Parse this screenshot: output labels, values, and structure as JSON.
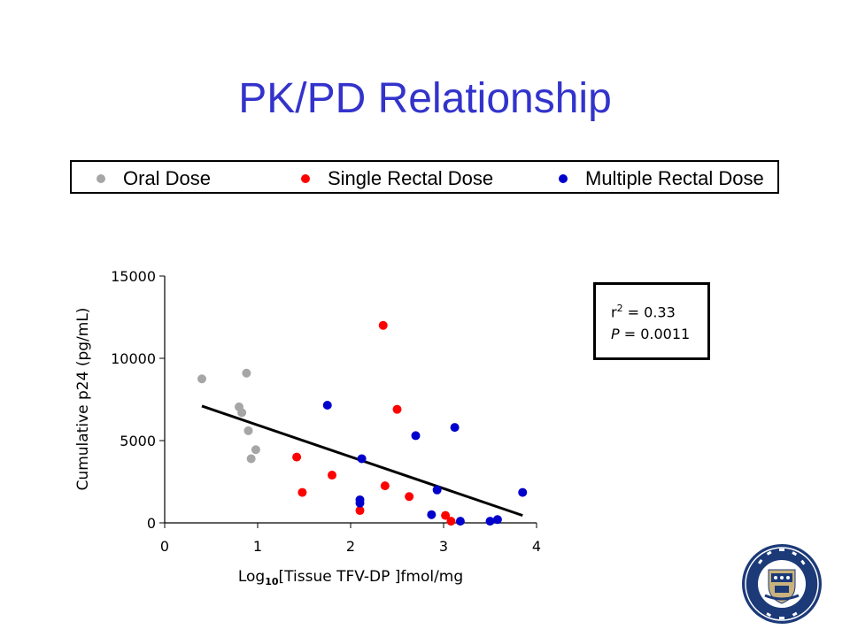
{
  "title": "PK/PD Relationship",
  "legend": {
    "items": [
      {
        "label": "Oral Dose",
        "color": "#a6a6a6"
      },
      {
        "label": "Single Rectal Dose",
        "color": "#ff0000"
      },
      {
        "label": "Multiple Rectal Dose",
        "color": "#0000cc"
      }
    ]
  },
  "stats": {
    "r2_prefix": "r",
    "r2_exp": "2",
    "r2_value": " = 0.33",
    "p_label": "P",
    "p_value": " = 0.0011"
  },
  "chart_data": {
    "type": "scatter",
    "xlabel_prefix": "Log",
    "xlabel_sub": "10",
    "xlabel_rest": "[Tissue TFV-DP ]fmol/mg",
    "ylabel": "Cumulative p24 (pg/mL)",
    "xlim": [
      0,
      4
    ],
    "ylim": [
      0,
      15000
    ],
    "xticks": [
      0,
      1,
      2,
      3,
      4
    ],
    "yticks": [
      0,
      5000,
      10000,
      15000
    ],
    "series": [
      {
        "name": "Oral Dose",
        "color": "#a6a6a6",
        "points": [
          [
            0.4,
            8750
          ],
          [
            0.88,
            9100
          ],
          [
            0.8,
            7050
          ],
          [
            0.83,
            6700
          ],
          [
            0.9,
            5600
          ],
          [
            0.93,
            3900
          ],
          [
            0.98,
            4450
          ]
        ]
      },
      {
        "name": "Single Rectal Dose",
        "color": "#ff0000",
        "points": [
          [
            2.35,
            12000
          ],
          [
            2.5,
            6900
          ],
          [
            1.42,
            4000
          ],
          [
            1.8,
            2900
          ],
          [
            1.48,
            1850
          ],
          [
            2.37,
            2250
          ],
          [
            2.63,
            1600
          ],
          [
            2.1,
            750
          ],
          [
            3.02,
            450
          ],
          [
            3.08,
            100
          ]
        ]
      },
      {
        "name": "Multiple Rectal Dose",
        "color": "#0000cc",
        "points": [
          [
            1.75,
            7150
          ],
          [
            2.7,
            5300
          ],
          [
            3.12,
            5800
          ],
          [
            2.12,
            3900
          ],
          [
            2.93,
            2000
          ],
          [
            2.1,
            1400
          ],
          [
            2.1,
            1200
          ],
          [
            2.87,
            500
          ],
          [
            3.18,
            100
          ],
          [
            3.5,
            100
          ],
          [
            3.58,
            200
          ],
          [
            3.85,
            1850
          ]
        ]
      }
    ],
    "trendline": {
      "x": [
        0.4,
        3.85
      ],
      "y": [
        7100,
        450
      ]
    }
  }
}
